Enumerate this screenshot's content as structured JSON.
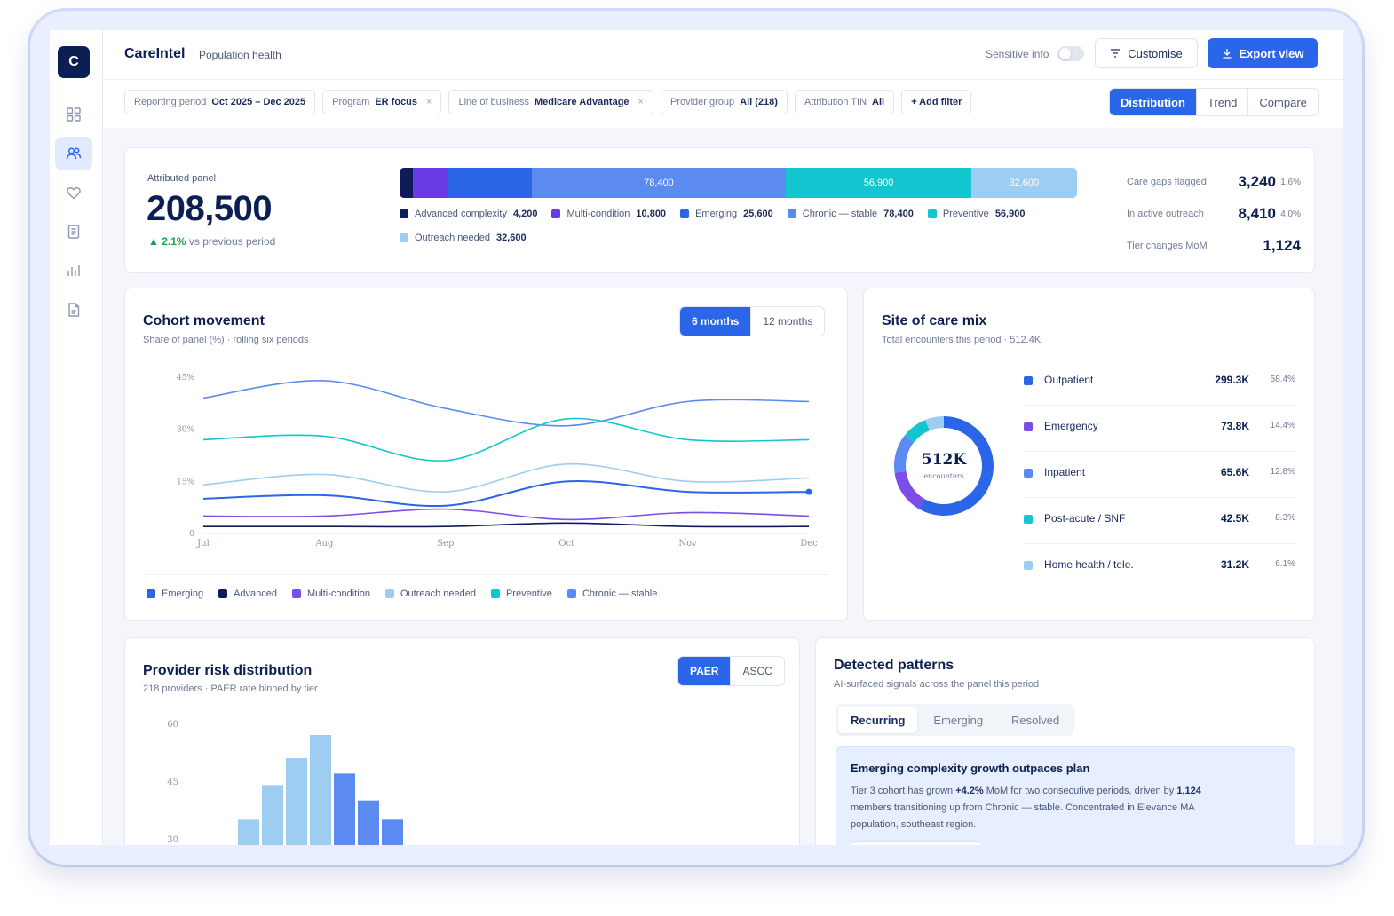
{
  "app": {
    "logo_letter": "C",
    "brand": "CareIntel",
    "section": "Population health"
  },
  "header": {
    "sensitive_label": "Sensitive info",
    "customise": "Customise",
    "export": "Export view"
  },
  "filters": [
    {
      "label": "Reporting period",
      "value": "Oct 2025 – Dec 2025",
      "removable": false
    },
    {
      "label": "Program",
      "value": "ER focus",
      "removable": true
    },
    {
      "label": "Line of business",
      "value": "Medicare Advantage",
      "removable": true
    },
    {
      "label": "Provider group",
      "value": "All (218)",
      "removable": false
    },
    {
      "label": "Attribution TIN",
      "value": "All",
      "removable": false
    }
  ],
  "add_filter": "+ Add filter",
  "views": [
    "Distribution",
    "Trend",
    "Compare"
  ],
  "summary": {
    "label": "Attributed panel",
    "value": "208,500",
    "delta": "2.1%",
    "delta_suffix": "vs previous period",
    "segments": [
      {
        "name": "Advanced complexity",
        "value": "4,200",
        "share": 4200,
        "color": "#0f1c57",
        "bar_label": ""
      },
      {
        "name": "Multi-condition",
        "value": "10,800",
        "share": 10800,
        "color": "#6a3be4",
        "bar_label": ""
      },
      {
        "name": "Emerging",
        "value": "25,600",
        "share": 25600,
        "color": "#2b66e8",
        "bar_label": ""
      },
      {
        "name": "Chronic — stable",
        "value": "78,400",
        "share": 78400,
        "color": "#5b8bf0",
        "bar_label": "78,400"
      },
      {
        "name": "Preventive",
        "value": "56,900",
        "share": 56900,
        "color": "#12c5cf",
        "bar_label": "56,900"
      },
      {
        "name": "Outreach needed",
        "value": "32,600",
        "share": 32600,
        "color": "#9dcdf0",
        "bar_label": "32,600"
      }
    ],
    "metrics": [
      {
        "label": "Care gaps flagged",
        "value": "3,240",
        "pct": "1.6%"
      },
      {
        "label": "In active outreach",
        "value": "8,410",
        "pct": "4.0%"
      },
      {
        "label": "Tier changes MoM",
        "value": "1,124",
        "pct": ""
      }
    ]
  },
  "cohort": {
    "title": "Cohort movement",
    "subtitle": "Share of panel (%) · rolling six periods",
    "ranges": [
      "6 months",
      "12 months"
    ],
    "legend": [
      {
        "name": "Emerging",
        "color": "#2b66e8"
      },
      {
        "name": "Advanced",
        "color": "#0f1c57"
      },
      {
        "name": "Multi-condition",
        "color": "#7c4de8"
      },
      {
        "name": "Outreach needed",
        "color": "#9dcdf0"
      },
      {
        "name": "Preventive",
        "color": "#12c5cf"
      },
      {
        "name": "Chronic — stable",
        "color": "#5b8bf0"
      }
    ]
  },
  "chart_data": [
    {
      "type": "line",
      "title": "Cohort movement",
      "x": [
        "Jul",
        "Aug",
        "Sep",
        "Oct",
        "Nov",
        "Dec"
      ],
      "y_ticks": [
        "45%",
        "30%",
        "15%",
        "0"
      ],
      "ylim": [
        0,
        45
      ],
      "series": [
        {
          "name": "Chronic — stable",
          "color": "#5b8bf0",
          "values": [
            39,
            44,
            36,
            31,
            38,
            38
          ]
        },
        {
          "name": "Preventive",
          "color": "#12c5cf",
          "values": [
            27,
            28,
            21,
            33,
            27,
            27
          ]
        },
        {
          "name": "Outreach needed",
          "color": "#9dcdf0",
          "values": [
            14,
            17,
            12,
            20,
            15,
            16
          ]
        },
        {
          "name": "Emerging",
          "color": "#2b66e8",
          "values": [
            10,
            11,
            8,
            15,
            12,
            12
          ]
        },
        {
          "name": "Multi-condition",
          "color": "#7c4de8",
          "values": [
            5,
            5,
            7,
            4,
            6,
            5
          ]
        },
        {
          "name": "Advanced",
          "color": "#0f1c57",
          "values": [
            2,
            2,
            2,
            3,
            2,
            2
          ]
        }
      ]
    },
    {
      "type": "pie",
      "title": "Site of care mix",
      "categories": [
        "Outpatient",
        "Emergency",
        "Inpatient",
        "Post-acute / SNF",
        "Home health / tele."
      ],
      "values": [
        58.4,
        14.4,
        12.8,
        8.3,
        6.1
      ]
    },
    {
      "type": "bar",
      "title": "Provider risk distribution",
      "y_ticks": [
        "60",
        "45",
        "30"
      ],
      "ylim": [
        30,
        60
      ],
      "values": [
        35,
        44,
        51,
        57,
        47,
        40,
        35
      ],
      "colors": [
        "#9dcdf0",
        "#9dcdf0",
        "#9dcdf0",
        "#9dcdf0",
        "#5b8bf0",
        "#5b8bf0",
        "#5b8bf0"
      ]
    }
  ],
  "site_mix": {
    "title": "Site of care mix",
    "subtitle": "Total encounters this period · 512.4K",
    "center_value": "512K",
    "center_label": "encounters",
    "rows": [
      {
        "name": "Outpatient",
        "value": "299.3K",
        "pct": "58.4%",
        "color": "#2b66e8"
      },
      {
        "name": "Emergency",
        "value": "73.8K",
        "pct": "14.4%",
        "color": "#7c4de8"
      },
      {
        "name": "Inpatient",
        "value": "65.6K",
        "pct": "12.8%",
        "color": "#5b8bf0"
      },
      {
        "name": "Post-acute / SNF",
        "value": "42.5K",
        "pct": "8.3%",
        "color": "#12c5cf"
      },
      {
        "name": "Home health / tele.",
        "value": "31.2K",
        "pct": "6.1%",
        "color": "#9dcdf0"
      }
    ]
  },
  "provider": {
    "title": "Provider risk distribution",
    "subtitle": "218 providers · PAER rate binned by tier",
    "modes": [
      "PAER",
      "ASCC"
    ]
  },
  "patterns": {
    "title": "Detected patterns",
    "subtitle": "AI-surfaced signals across the panel this period",
    "tabs": [
      "Recurring",
      "Emerging",
      "Resolved"
    ],
    "card_title": "Emerging complexity growth outpaces plan",
    "body_1": "Tier 3 cohort has grown ",
    "body_b1": "+4.2%",
    "body_2": " MoM for two consecutive periods, driven by ",
    "body_b2": "1,124",
    "body_3": " members transitioning up from Chronic — stable. Concentrated in Elevance MA population, southeast region."
  }
}
